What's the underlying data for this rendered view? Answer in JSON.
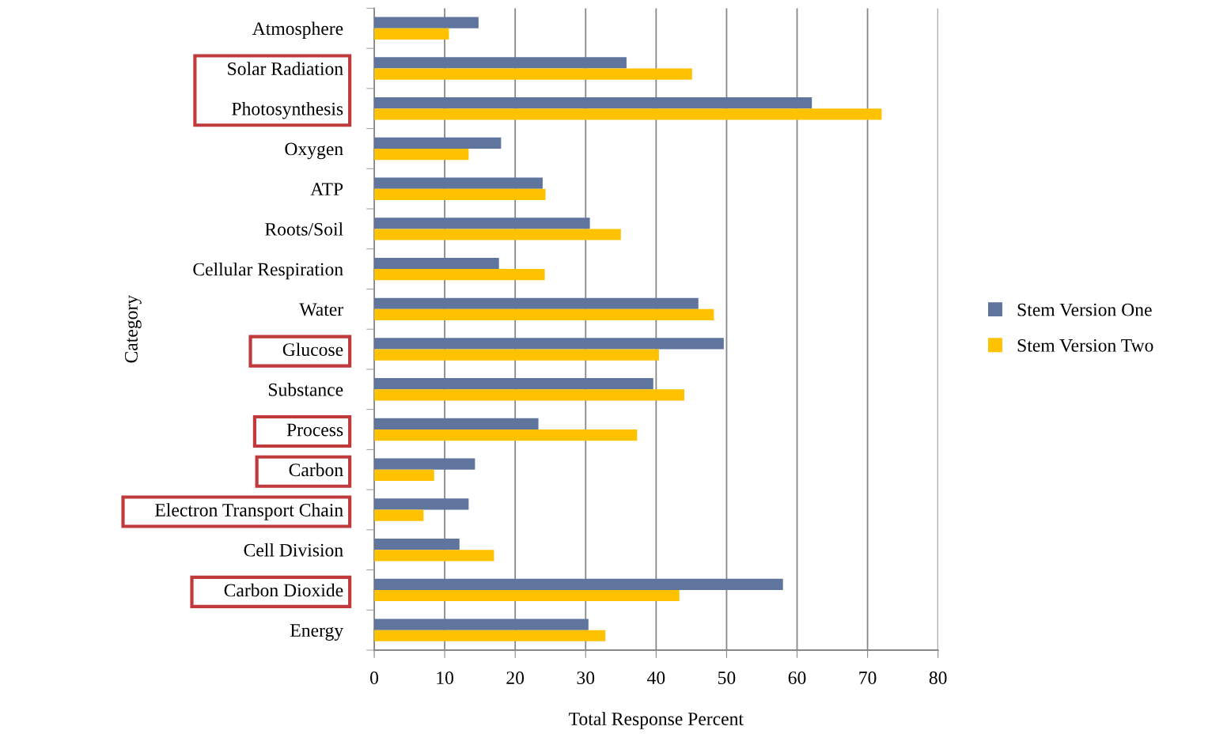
{
  "chart_data": {
    "type": "bar",
    "orientation": "horizontal",
    "xlabel": "Total Response Percent",
    "ylabel": "Category",
    "categories": [
      "Atmosphere",
      "Solar Radiation",
      "Photosynthesis",
      "Oxygen",
      "ATP",
      "Roots/Soil",
      "Cellular Respiration",
      "Water",
      "Glucose",
      "Substance",
      "Process",
      "Carbon",
      "Electron Transport Chain",
      "Cell Division",
      "Carbon Dioxide",
      "Energy"
    ],
    "series": [
      {
        "name": "Stem Version One",
        "color": "#60759e",
        "values": [
          14.8,
          35.8,
          62.1,
          18.0,
          23.9,
          30.6,
          17.7,
          46.0,
          49.6,
          39.6,
          23.3,
          14.3,
          13.4,
          12.1,
          58.0,
          30.4
        ]
      },
      {
        "name": "Stem Version Two",
        "color": "#fec200",
        "values": [
          10.6,
          45.1,
          72.0,
          13.4,
          24.3,
          35.0,
          24.2,
          48.2,
          40.4,
          44.0,
          37.3,
          8.5,
          7.0,
          17.0,
          43.3,
          32.8
        ]
      }
    ],
    "xlim": [
      0,
      80
    ],
    "xticks": [
      0,
      10,
      20,
      30,
      40,
      50,
      60,
      70,
      80
    ],
    "grid": "x",
    "legend": "right"
  }
}
